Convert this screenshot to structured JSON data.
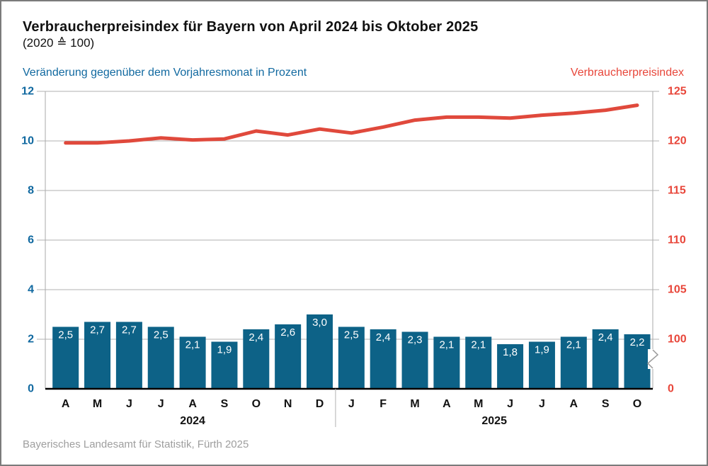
{
  "header": {
    "title": "Verbraucherpreisindex für Bayern von April 2024 bis Oktober 2025",
    "subtitle": "(2020 ≙ 100)"
  },
  "axes": {
    "left_title": "Veränderung gegenüber dem Vorjahresmonat in Prozent",
    "right_title": "Verbraucherpreisindex"
  },
  "footer": {
    "source": "Bayerisches Landesamt für Statistik, Fürth 2025"
  },
  "colors": {
    "bar_fill": "#0d6287",
    "bar_label_text": "#ffffff",
    "line_stroke": "#e0493c",
    "left_axis_text": "#1169a0",
    "right_axis_text": "#e8463a",
    "grid": "#b2b2b2",
    "plot_border": "#a9a9a9",
    "axis_line": "#000000",
    "divider": "#b2b2b2",
    "month_text": "#111111",
    "year_text": "#111111",
    "break_symbol": "#9a9a9a"
  },
  "chart_data": {
    "type": "combo (bar + line, dual axis)",
    "categories": [
      "A",
      "M",
      "J",
      "J",
      "A",
      "S",
      "O",
      "N",
      "D",
      "J",
      "F",
      "M",
      "A",
      "M",
      "J",
      "J",
      "A",
      "S",
      "O"
    ],
    "category_groups": [
      {
        "label": "2024",
        "from": 0,
        "to": 8
      },
      {
        "label": "2025",
        "from": 9,
        "to": 18
      }
    ],
    "series": [
      {
        "name": "Veränderung gegenüber dem Vorjahresmonat in Prozent",
        "type": "bar",
        "axis": "left",
        "values": [
          2.5,
          2.7,
          2.7,
          2.5,
          2.1,
          1.9,
          2.4,
          2.6,
          3.0,
          2.5,
          2.4,
          2.3,
          2.1,
          2.1,
          1.8,
          1.9,
          2.1,
          2.4,
          2.2
        ],
        "labels": [
          "2,5",
          "2,7",
          "2,7",
          "2,5",
          "2,1",
          "1,9",
          "2,4",
          "2,6",
          "3,0",
          "2,5",
          "2,4",
          "2,3",
          "2,1",
          "2,1",
          "1,8",
          "1,9",
          "2,1",
          "2,4",
          "2,2"
        ]
      },
      {
        "name": "Verbraucherpreisindex",
        "type": "line",
        "axis": "right",
        "values": [
          119.8,
          119.8,
          120.0,
          120.3,
          120.1,
          120.2,
          121.0,
          120.6,
          121.2,
          120.8,
          121.4,
          122.1,
          122.4,
          122.4,
          122.3,
          122.6,
          122.8,
          123.1,
          123.6
        ]
      }
    ],
    "left_axis": {
      "ticks": [
        0,
        2,
        4,
        6,
        8,
        10,
        12
      ],
      "min": 0,
      "max": 12,
      "grid": true
    },
    "right_axis": {
      "ticks": [
        0,
        100,
        105,
        110,
        115,
        120,
        125
      ],
      "broken_between": [
        0,
        100
      ],
      "mapping": "left 2 ≙ right 100, left 12 ≙ right 125"
    }
  }
}
